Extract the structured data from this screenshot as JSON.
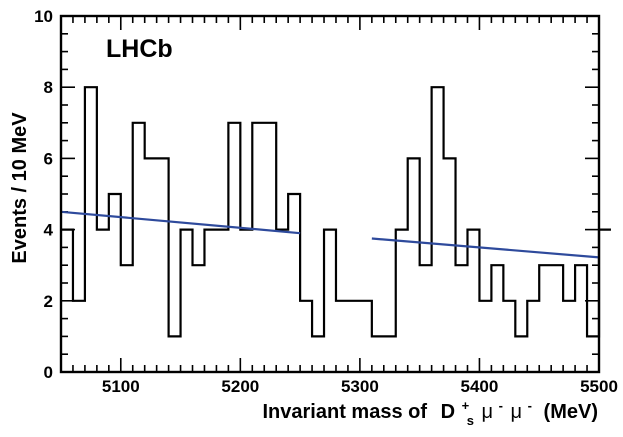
{
  "chart_data": {
    "type": "histogram",
    "title": "",
    "logo_text": "LHCb",
    "ylabel": "Events / 10 MeV",
    "xlabel": {
      "prefix": "Invariant mass of",
      "particle": "D",
      "particle_sup": "+",
      "particle_sub": "s",
      "mu1": "μ",
      "mu1_sup": "-",
      "mu2": "μ",
      "mu2_sup": "-",
      "suffix": "(MeV)"
    },
    "xlim": [
      5050,
      5500
    ],
    "ylim": [
      0,
      10
    ],
    "x_ticks": [
      5100,
      5200,
      5300,
      5400,
      5500
    ],
    "y_ticks": [
      0,
      2,
      4,
      6,
      8,
      10
    ],
    "bin_width": 10,
    "bin_edges_start": 5050,
    "counts": [
      4,
      2,
      8,
      4,
      5,
      3,
      7,
      6,
      6,
      1,
      4,
      3,
      4,
      4,
      7,
      4,
      7,
      7,
      4,
      5,
      2,
      1,
      4,
      2,
      2,
      2,
      1,
      1,
      4,
      6,
      3,
      8,
      6,
      3,
      4,
      2,
      3,
      2,
      1,
      2,
      3,
      3,
      2,
      3,
      1,
      4
    ],
    "fit_lines": [
      {
        "x": [
          5050,
          5250
        ],
        "y": [
          4.5,
          3.9
        ]
      },
      {
        "x": [
          5310,
          5500
        ],
        "y": [
          3.75,
          3.22
        ]
      }
    ],
    "colors": {
      "histogram": "#000000",
      "fit": "#2e4a9c"
    },
    "grid": false
  }
}
